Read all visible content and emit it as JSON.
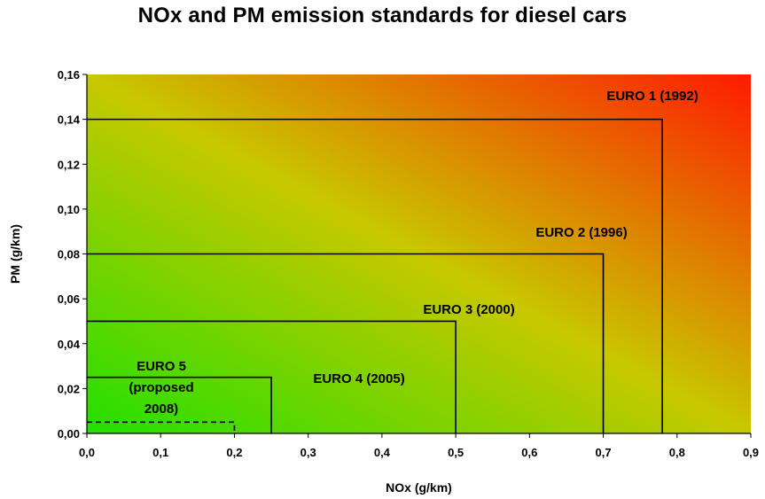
{
  "chart_data": {
    "type": "area",
    "title": "NOx and PM emission standards for diesel cars",
    "xlabel": "NOx (g/km)",
    "ylabel": "PM (g/km)",
    "xlim": [
      0,
      0.9
    ],
    "ylim": [
      0,
      0.16
    ],
    "x_ticks": [
      "0,0",
      "0,1",
      "0,2",
      "0,3",
      "0,4",
      "0,5",
      "0,6",
      "0,7",
      "0,8",
      "0,9"
    ],
    "y_ticks": [
      "0,00",
      "0,02",
      "0,04",
      "0,06",
      "0,08",
      "0,10",
      "0,12",
      "0,14",
      "0,16"
    ],
    "background": "gradient from green (low NOx, low PM) to red (high NOx, high PM)",
    "colors": {
      "low": "#22e000",
      "mid": "#c8c800",
      "high": "#ff1a00"
    },
    "series": [
      {
        "name": "EURO 1 (1992)",
        "nox": 0.78,
        "pm": 0.14
      },
      {
        "name": "EURO 2 (1996)",
        "nox": 0.7,
        "pm": 0.08
      },
      {
        "name": "EURO 3 (2000)",
        "nox": 0.5,
        "pm": 0.05
      },
      {
        "name": "EURO 4 (2005)",
        "nox": 0.25,
        "pm": 0.025
      },
      {
        "name": "EURO 5 (proposed 2008)",
        "nox": 0.2,
        "pm": 0.005,
        "dashed": true
      }
    ],
    "labels": {
      "euro1": "EURO 1 (1992)",
      "euro2": "EURO 2 (1996)",
      "euro3": "EURO 3 (2000)",
      "euro4": "EURO 4 (2005)",
      "euro5_line1": "EURO 5",
      "euro5_line2": "(proposed",
      "euro5_line3": "2008)"
    }
  }
}
